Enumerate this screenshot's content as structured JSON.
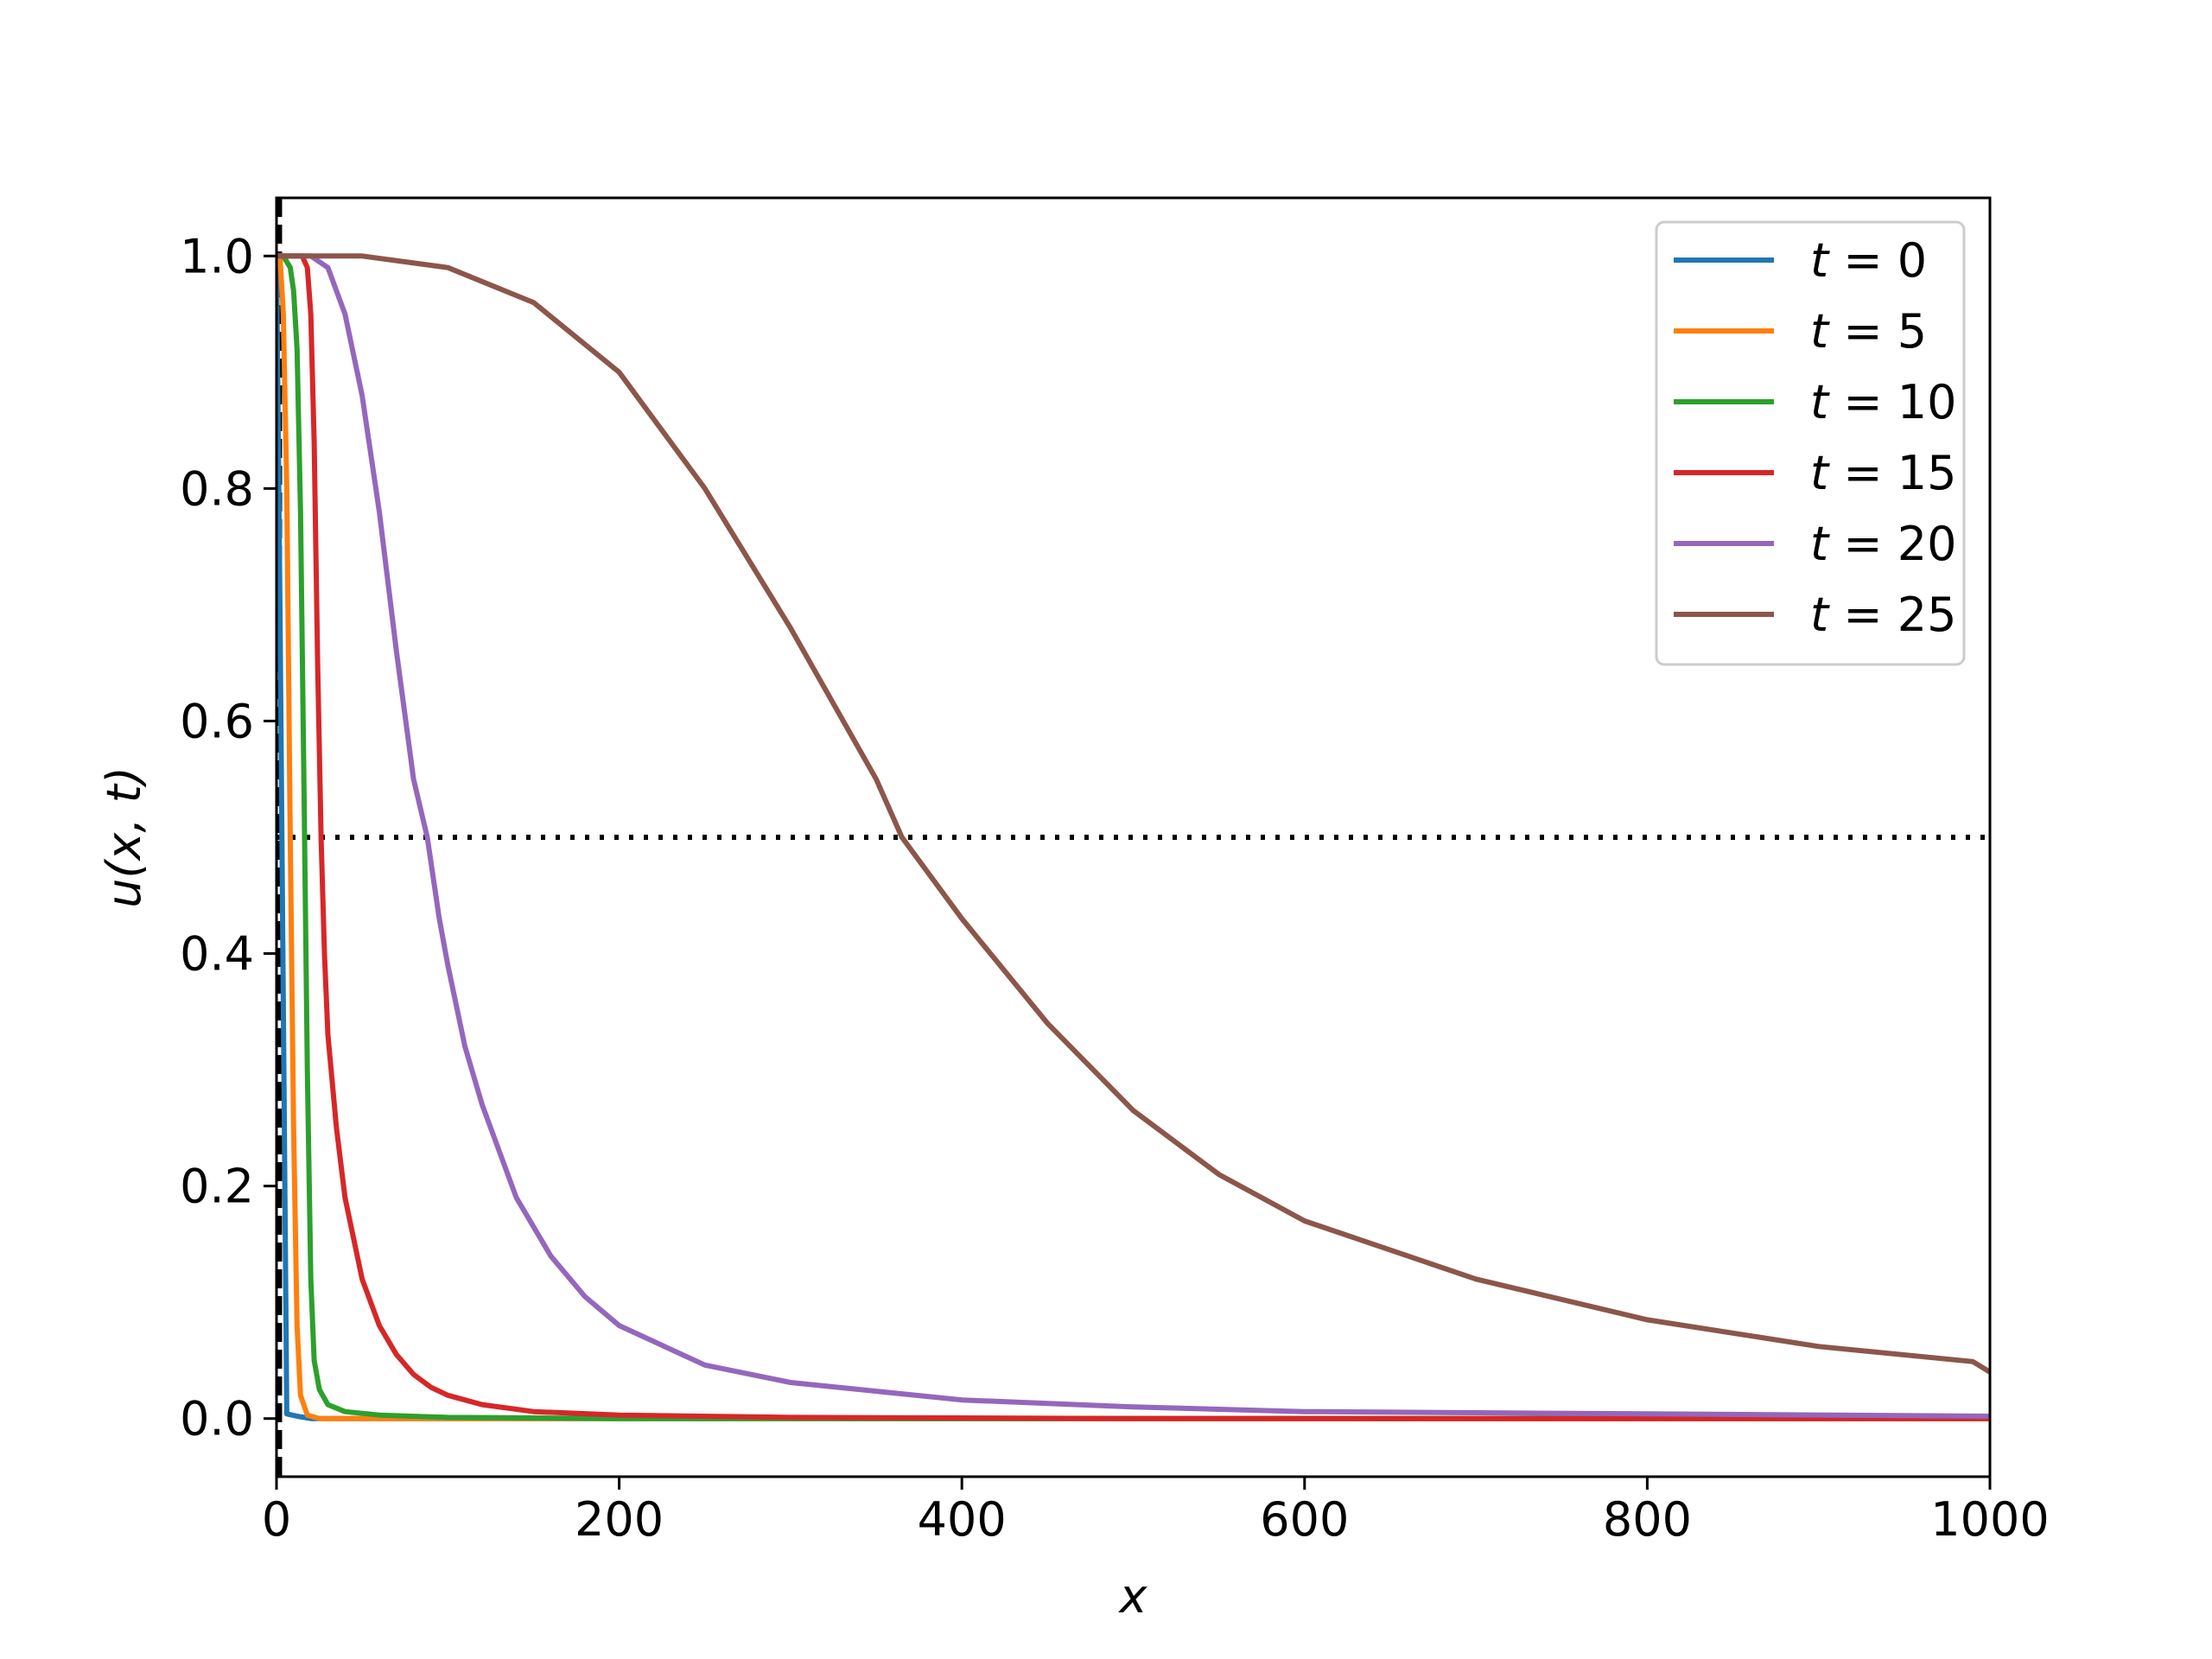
{
  "chart_data": {
    "type": "line",
    "title": "",
    "xlabel": "x",
    "ylabel": "u(x, t)",
    "xlim": [
      0,
      1000
    ],
    "ylim": [
      -0.05,
      1.05
    ],
    "xticks": [
      0,
      200,
      400,
      600,
      800,
      1000
    ],
    "xtick_labels": [
      "0",
      "200",
      "400",
      "600",
      "800",
      "1000"
    ],
    "yticks": [
      0.0,
      0.2,
      0.4,
      0.6,
      0.8,
      1.0
    ],
    "ytick_labels": [
      "0.0",
      "0.2",
      "0.4",
      "0.6",
      "0.8",
      "1.0"
    ],
    "grid": false,
    "legend_position": "top-right",
    "reference_lines": [
      {
        "orientation": "horizontal",
        "value": 0.5,
        "style": "dotted",
        "color": "#000000"
      },
      {
        "orientation": "vertical",
        "value": 2,
        "style": "dashed",
        "color": "#000000"
      }
    ],
    "series": [
      {
        "legend_var": "t",
        "legend_rest": " = 0",
        "color": "#1f77b4",
        "x": [
          0,
          2,
          6,
          12,
          20,
          40,
          100,
          1000
        ],
        "y": [
          1.0,
          0.7,
          0.004,
          0.002,
          0.0,
          0.0,
          0.0,
          0.0
        ]
      },
      {
        "legend_var": "t",
        "legend_rest": " = 5",
        "color": "#ff7f0e",
        "x": [
          0,
          2,
          4,
          6,
          8,
          10,
          12,
          14,
          18,
          25,
          40,
          100,
          1000
        ],
        "y": [
          1.0,
          1.0,
          0.95,
          0.8,
          0.5,
          0.25,
          0.08,
          0.02,
          0.003,
          0.0,
          0.0,
          0.0,
          0.0
        ]
      },
      {
        "legend_var": "t",
        "legend_rest": " = 10",
        "color": "#2ca02c",
        "x": [
          0,
          4,
          8,
          10,
          12,
          14,
          16,
          18,
          20,
          22,
          25,
          30,
          40,
          60,
          100,
          200,
          1000
        ],
        "y": [
          1.0,
          1.0,
          0.99,
          0.97,
          0.92,
          0.78,
          0.55,
          0.3,
          0.12,
          0.05,
          0.025,
          0.012,
          0.006,
          0.003,
          0.001,
          0.0,
          0.0
        ]
      },
      {
        "legend_var": "t",
        "legend_rest": " = 15",
        "color": "#d62728",
        "x": [
          0,
          10,
          15,
          18,
          20,
          22,
          24,
          26,
          28,
          30,
          35,
          40,
          50,
          60,
          70,
          80,
          90,
          100,
          120,
          150,
          200,
          300,
          500,
          1000
        ],
        "y": [
          1.0,
          1.0,
          1.0,
          0.99,
          0.95,
          0.84,
          0.65,
          0.5,
          0.4,
          0.33,
          0.25,
          0.19,
          0.12,
          0.08,
          0.055,
          0.038,
          0.027,
          0.02,
          0.012,
          0.006,
          0.003,
          0.001,
          0.0,
          0.0
        ]
      },
      {
        "legend_var": "t",
        "legend_rest": " = 20",
        "color": "#9467bd",
        "x": [
          0,
          20,
          30,
          40,
          50,
          60,
          70,
          80,
          88,
          95,
          100,
          110,
          120,
          140,
          160,
          180,
          200,
          250,
          300,
          400,
          500,
          600,
          800,
          1000
        ],
        "y": [
          1.0,
          1.0,
          0.99,
          0.95,
          0.88,
          0.78,
          0.66,
          0.55,
          0.5,
          0.43,
          0.39,
          0.32,
          0.27,
          0.19,
          0.14,
          0.105,
          0.08,
          0.046,
          0.031,
          0.016,
          0.01,
          0.006,
          0.004,
          0.002
        ]
      },
      {
        "legend_var": "t",
        "legend_rest": " = 25",
        "color": "#8c564b",
        "x": [
          0,
          50,
          100,
          150,
          200,
          250,
          300,
          350,
          365,
          400,
          450,
          500,
          550,
          600,
          700,
          800,
          900,
          990,
          1000
        ],
        "y": [
          1.0,
          1.0,
          0.99,
          0.96,
          0.9,
          0.8,
          0.68,
          0.55,
          0.5,
          0.43,
          0.34,
          0.265,
          0.21,
          0.17,
          0.12,
          0.085,
          0.062,
          0.049,
          0.04
        ]
      }
    ]
  }
}
